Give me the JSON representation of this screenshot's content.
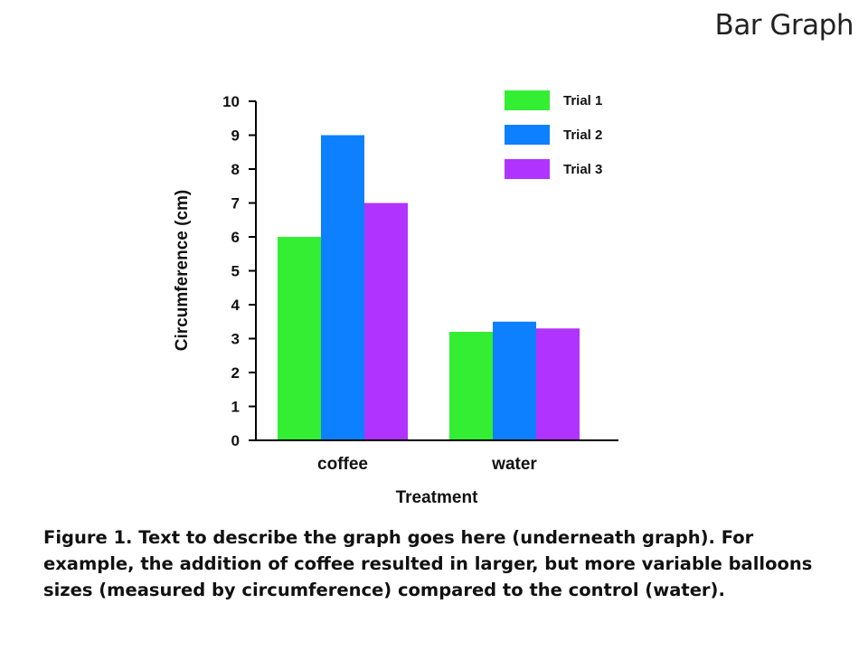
{
  "slide": {
    "title": "Bar Graph",
    "caption": "Figure 1.  Text to describe the graph goes here (underneath graph).  For example, the addition of coffee resulted in larger, but more variable balloons sizes (measured by circumference) compared to the control (water)."
  },
  "chart_data": {
    "type": "bar",
    "title": "",
    "xlabel": "Treatment",
    "ylabel": "Circumference (cm)",
    "ylim": [
      0,
      10
    ],
    "yticks": [
      "0",
      "1",
      "2",
      "3",
      "4",
      "5",
      "6",
      "7",
      "8",
      "9",
      "10"
    ],
    "categories": [
      "coffee",
      "water"
    ],
    "series": [
      {
        "name": "Trial 1",
        "color": "#33ee33",
        "values": [
          6,
          3.2
        ]
      },
      {
        "name": "Trial 2",
        "color": "#0d80ff",
        "values": [
          9,
          3.5
        ]
      },
      {
        "name": "Trial 3",
        "color": "#b033ff",
        "values": [
          7,
          3.3
        ]
      }
    ],
    "legend_position": "top-right",
    "grid": false
  }
}
